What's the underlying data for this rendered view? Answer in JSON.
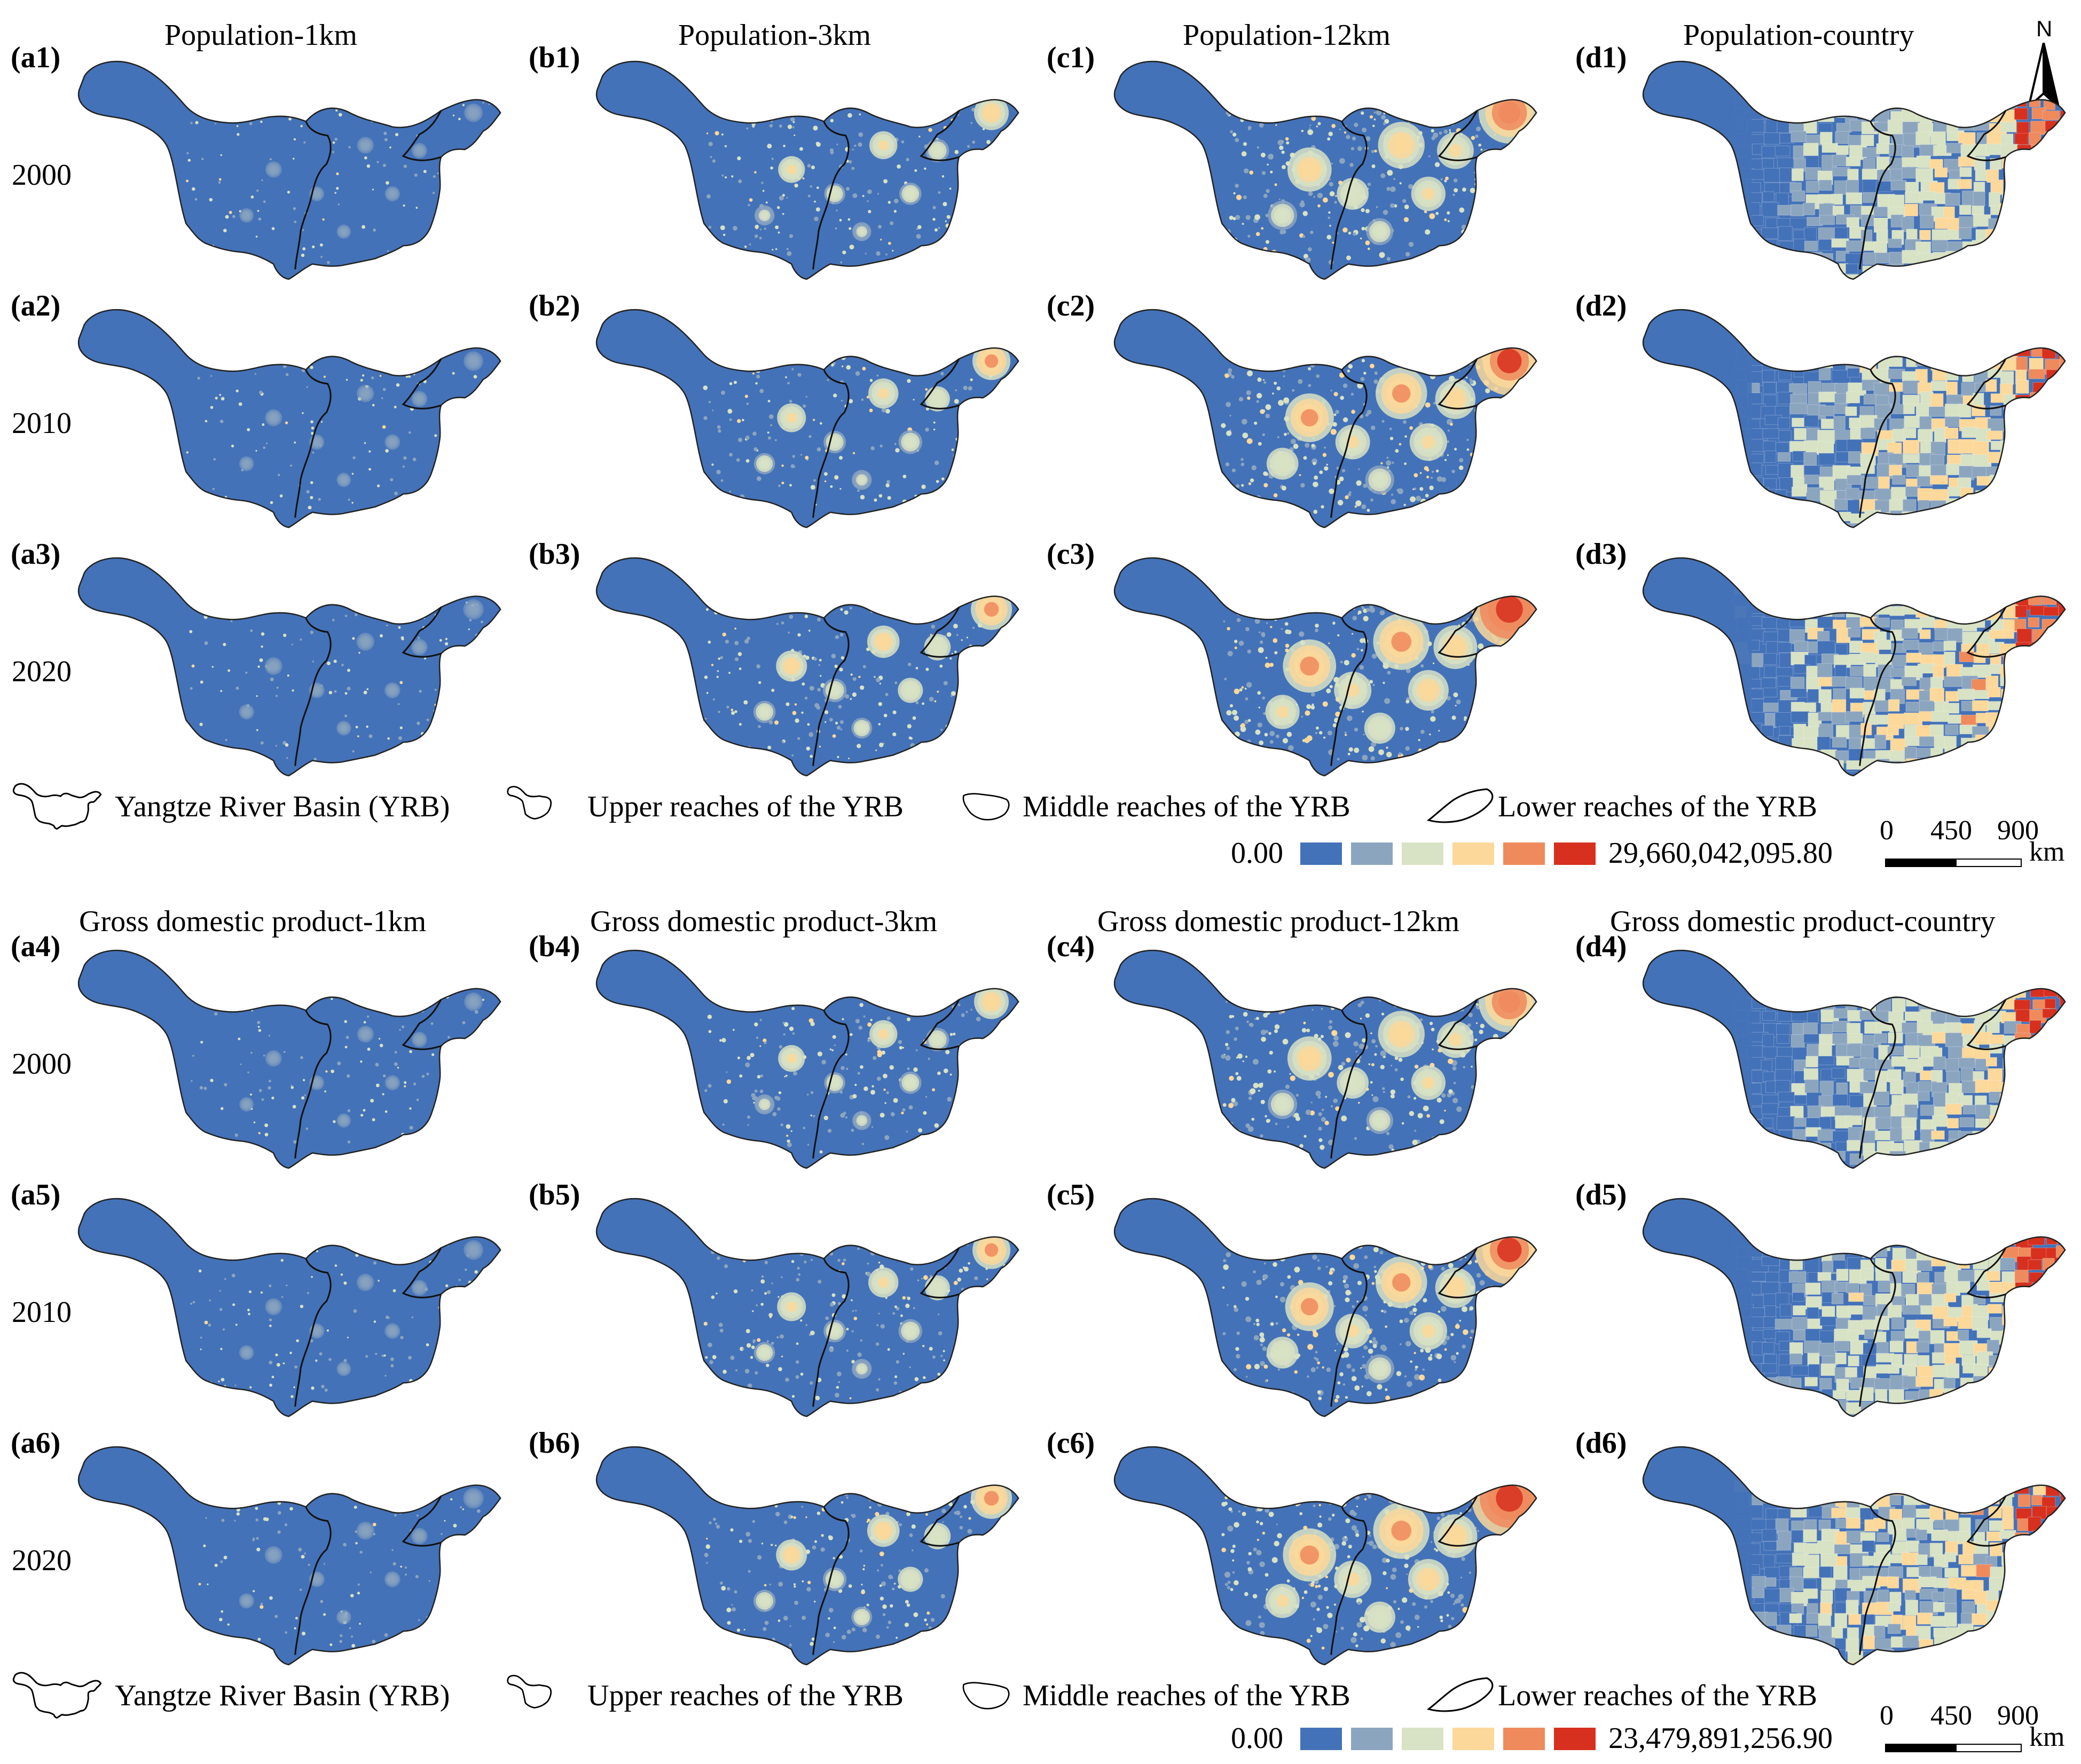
{
  "population_section": {
    "column_titles": [
      "Population-1km",
      "Population-3km",
      "Population-12km",
      "Population-country"
    ],
    "panel_labels": [
      [
        "(a1)",
        "(b1)",
        "(c1)",
        "(d1)"
      ],
      [
        "(a2)",
        "(b2)",
        "(c2)",
        "(d2)"
      ],
      [
        "(a3)",
        "(b3)",
        "(c3)",
        "(d3)"
      ]
    ],
    "years": [
      "2000",
      "2010",
      "2020"
    ],
    "legend_min": "0.00",
    "legend_max": "29,660,042,095.80"
  },
  "gdp_section": {
    "column_titles": [
      "Gross domestic product-1km",
      "Gross domestic product-3km",
      "Gross domestic product-12km",
      "Gross domestic product-country"
    ],
    "panel_labels": [
      [
        "(a4)",
        "(b4)",
        "(c4)",
        "(d4)"
      ],
      [
        "(a5)",
        "(b5)",
        "(c5)",
        "(d5)"
      ],
      [
        "(a6)",
        "(b6)",
        "(c6)",
        "(d6)"
      ]
    ],
    "years": [
      "2000",
      "2010",
      "2020"
    ],
    "legend_min": "0.00",
    "legend_max": "23,479,891,256.90"
  },
  "legend": {
    "yrb": "Yangtze River Basin (YRB)",
    "upper": "Upper reaches of the YRB",
    "middle": "Middle reaches of the YRB",
    "lower": "Lower reaches of the YRB"
  },
  "scale_bar": {
    "ticks": [
      "0",
      "450",
      "900"
    ],
    "unit": "km"
  },
  "north_arrow": {
    "label": "N"
  },
  "colors": {
    "c1": "#4472b8",
    "c2": "#8ca5bf",
    "c3": "#d8e2c4",
    "c4": "#fcd89a",
    "c5": "#ef8a5d",
    "c6": "#d7301f"
  }
}
